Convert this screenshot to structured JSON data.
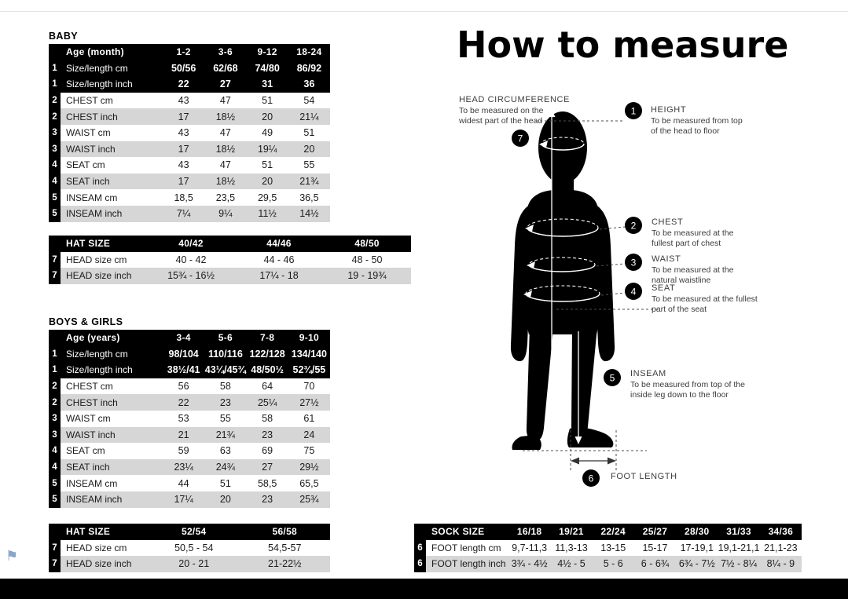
{
  "page": {
    "heading": "How to measure",
    "section_titles": {
      "baby": "BABY",
      "boys_girls": "BOYS & GIRLS"
    },
    "colors": {
      "table_header": "#000000",
      "row_gray": "#d6d6d6",
      "flag_blue": "#8ba6c9"
    }
  },
  "icons": {
    "flag": "⚑"
  },
  "tables": [
    {
      "id": "baby",
      "header": {
        "label": "Age (month)",
        "cols": [
          "1-2",
          "3-6",
          "9-12",
          "18-24"
        ]
      },
      "rows": [
        {
          "num": "1",
          "label": "Size/length cm",
          "style": "black",
          "values": [
            "50/56",
            "62/68",
            "74/80",
            "86/92"
          ]
        },
        {
          "num": "1",
          "label": "Size/length inch",
          "style": "black",
          "values": [
            "22",
            "27",
            "31",
            "36"
          ]
        },
        {
          "num": "2",
          "label": "CHEST cm",
          "style": "white",
          "values": [
            "43",
            "47",
            "51",
            "54"
          ]
        },
        {
          "num": "2",
          "label": "CHEST inch",
          "style": "gray",
          "values": [
            "17",
            "18½",
            "20",
            "21¼"
          ]
        },
        {
          "num": "3",
          "label": "WAIST cm",
          "style": "white",
          "values": [
            "43",
            "47",
            "49",
            "51"
          ]
        },
        {
          "num": "3",
          "label": "WAIST inch",
          "style": "gray",
          "values": [
            "17",
            "18½",
            "19¼",
            "20"
          ]
        },
        {
          "num": "4",
          "label": "SEAT cm",
          "style": "white",
          "values": [
            "43",
            "47",
            "51",
            "55"
          ]
        },
        {
          "num": "4",
          "label": "SEAT inch",
          "style": "gray",
          "values": [
            "17",
            "18½",
            "20",
            "21¾"
          ]
        },
        {
          "num": "5",
          "label": "INSEAM cm",
          "style": "white",
          "values": [
            "18,5",
            "23,5",
            "29,5",
            "36,5"
          ]
        },
        {
          "num": "5",
          "label": "INSEAM inch",
          "style": "gray",
          "values": [
            "7¼",
            "9¼",
            "11½",
            "14½"
          ]
        }
      ]
    },
    {
      "id": "hat-baby",
      "header": {
        "label": "HAT SIZE",
        "cols": [
          "40/42",
          "44/46",
          "48/50"
        ]
      },
      "rows": [
        {
          "num": "7",
          "label": "HEAD size cm",
          "style": "white",
          "values": [
            "40 - 42",
            "44 - 46",
            "48 - 50"
          ]
        },
        {
          "num": "7",
          "label": "HEAD size inch",
          "style": "gray",
          "values": [
            "15¾ - 16½",
            "17¼ - 18",
            "19 - 19¾"
          ]
        }
      ]
    },
    {
      "id": "boys-girls",
      "header": {
        "label": "Age (years)",
        "cols": [
          "3-4",
          "5-6",
          "7-8",
          "9-10"
        ]
      },
      "rows": [
        {
          "num": "1",
          "label": "Size/length cm",
          "style": "black",
          "values": [
            "98/104",
            "110/116",
            "122/128",
            "134/140"
          ]
        },
        {
          "num": "1",
          "label": "Size/length inch",
          "style": "black",
          "values": [
            "38½/41",
            "43¼/45¾",
            "48/50½",
            "52¾/55"
          ]
        },
        {
          "num": "2",
          "label": "CHEST cm",
          "style": "white",
          "values": [
            "56",
            "58",
            "64",
            "70"
          ]
        },
        {
          "num": "2",
          "label": "CHEST inch",
          "style": "gray",
          "values": [
            "22",
            "23",
            "25¼",
            "27½"
          ]
        },
        {
          "num": "3",
          "label": "WAIST cm",
          "style": "white",
          "values": [
            "53",
            "55",
            "58",
            "61"
          ]
        },
        {
          "num": "3",
          "label": "WAIST inch",
          "style": "gray",
          "values": [
            "21",
            "21¾",
            "23",
            "24"
          ]
        },
        {
          "num": "4",
          "label": "SEAT cm",
          "style": "white",
          "values": [
            "59",
            "63",
            "69",
            "75"
          ]
        },
        {
          "num": "4",
          "label": "SEAT inch",
          "style": "gray",
          "values": [
            "23¼",
            "24¾",
            "27",
            "29½"
          ]
        },
        {
          "num": "5",
          "label": "INSEAM cm",
          "style": "white",
          "values": [
            "44",
            "51",
            "58,5",
            "65,5"
          ]
        },
        {
          "num": "5",
          "label": "INSEAM inch",
          "style": "gray",
          "values": [
            "17¼",
            "20",
            "23",
            "25¾"
          ]
        }
      ]
    },
    {
      "id": "hat-kids",
      "header": {
        "label": "HAT SIZE",
        "cols": [
          "52/54",
          "56/58"
        ]
      },
      "rows": [
        {
          "num": "7",
          "label": "HEAD size cm",
          "style": "white",
          "values": [
            "50,5 - 54",
            "54,5-57"
          ]
        },
        {
          "num": "7",
          "label": "HEAD size inch",
          "style": "gray",
          "values": [
            "20 - 21",
            "21-22½"
          ]
        }
      ]
    },
    {
      "id": "sock",
      "header": {
        "label": "SOCK SIZE",
        "cols": [
          "16/18",
          "19/21",
          "22/24",
          "25/27",
          "28/30",
          "31/33",
          "34/36"
        ]
      },
      "rows": [
        {
          "num": "6",
          "label": "FOOT length cm",
          "style": "white",
          "values": [
            "9,7-11,3",
            "11,3-13",
            "13-15",
            "15-17",
            "17-19,1",
            "19,1-21,1",
            "21,1-23"
          ]
        },
        {
          "num": "6",
          "label": "FOOT length inch",
          "style": "gray",
          "values": [
            "3¾ - 4½",
            "4½ - 5",
            "5 - 6",
            "6 - 6¾",
            "6¾ - 7½",
            "7½ - 8¼",
            "8¼ - 9"
          ]
        }
      ]
    }
  ],
  "measure": {
    "annotations": [
      {
        "num": "1",
        "title": "HEIGHT",
        "desc": "To be measured from top\nof the head to floor"
      },
      {
        "num": "2",
        "title": "CHEST",
        "desc": "To be measured at the\nfullest part of chest"
      },
      {
        "num": "3",
        "title": "WAIST",
        "desc": "To be measured at the\nnatural waistline"
      },
      {
        "num": "4",
        "title": "SEAT",
        "desc": "To be measured at the fullest\npart of the seat"
      },
      {
        "num": "5",
        "title": "INSEAM",
        "desc": "To be measured from top of the\ninside leg down to the floor"
      },
      {
        "num": "6",
        "title": "FOOT LENGTH",
        "desc": ""
      },
      {
        "num": "7",
        "title": "HEAD CIRCUMFERENCE",
        "desc": "To be measured on the\nwidest part of the head"
      }
    ]
  }
}
